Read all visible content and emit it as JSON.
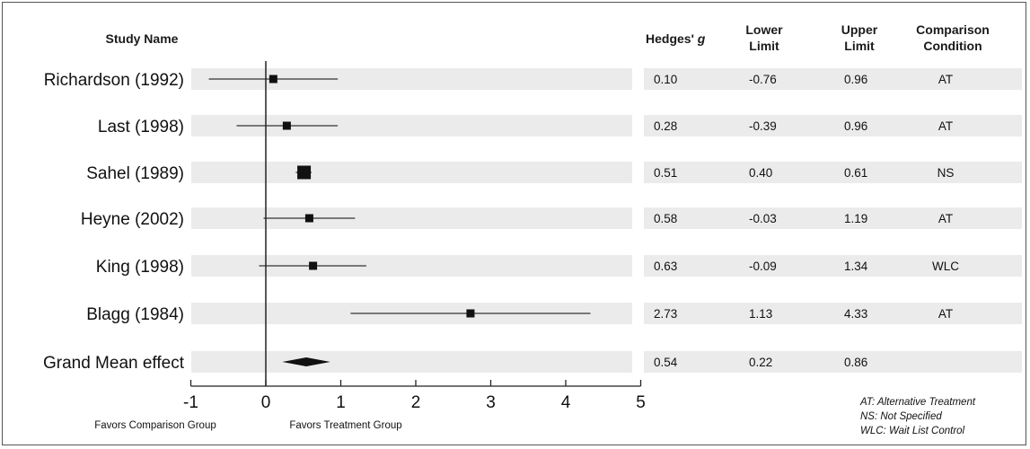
{
  "headers": {
    "study": "Study Name",
    "hedges": "Hedges' g",
    "lower": [
      "Lower",
      "Limit"
    ],
    "upper": [
      "Upper",
      "Limit"
    ],
    "comparison": [
      "Comparison",
      "Condition"
    ]
  },
  "chart_data": {
    "type": "forest",
    "x_ticks": [
      "-1",
      "0",
      "1",
      "2",
      "3",
      "4",
      "5"
    ],
    "xlim": [
      -1,
      5
    ],
    "xlabel_left": "Favors Comparison Group",
    "xlabel_right": "Favors Treatment Group",
    "studies": [
      {
        "name": "Richardson (1992)",
        "g": 0.1,
        "lower": -0.76,
        "upper": 0.96,
        "g_text": "0.10",
        "lower_text": "-0.76",
        "upper_text": "0.96",
        "condition": "AT"
      },
      {
        "name": "Last (1998)",
        "g": 0.28,
        "lower": -0.39,
        "upper": 0.96,
        "g_text": "0.28",
        "lower_text": "-0.39",
        "upper_text": "0.96",
        "condition": "AT"
      },
      {
        "name": "Sahel (1989)",
        "g": 0.51,
        "lower": 0.4,
        "upper": 0.61,
        "g_text": "0.51",
        "lower_text": "0.40",
        "upper_text": "0.61",
        "condition": "NS"
      },
      {
        "name": "Heyne (2002)",
        "g": 0.58,
        "lower": -0.03,
        "upper": 1.19,
        "g_text": "0.58",
        "lower_text": "-0.03",
        "upper_text": "1.19",
        "condition": "AT"
      },
      {
        "name": "King (1998)",
        "g": 0.63,
        "lower": -0.09,
        "upper": 1.34,
        "g_text": "0.63",
        "lower_text": "-0.09",
        "upper_text": "1.34",
        "condition": "WLC"
      },
      {
        "name": "Blagg (1984)",
        "g": 2.73,
        "lower": 1.13,
        "upper": 4.33,
        "g_text": "2.73",
        "lower_text": "1.13",
        "upper_text": "4.33",
        "condition": "AT"
      }
    ],
    "grand_mean": {
      "name": "Grand Mean effect",
      "g": 0.54,
      "lower": 0.22,
      "upper": 0.86,
      "g_text": "0.54",
      "lower_text": "0.22",
      "upper_text": "0.86"
    }
  },
  "notes": [
    "AT: Alternative Treatment",
    "NS: Not Specified",
    "WLC: Wait List Control"
  ]
}
